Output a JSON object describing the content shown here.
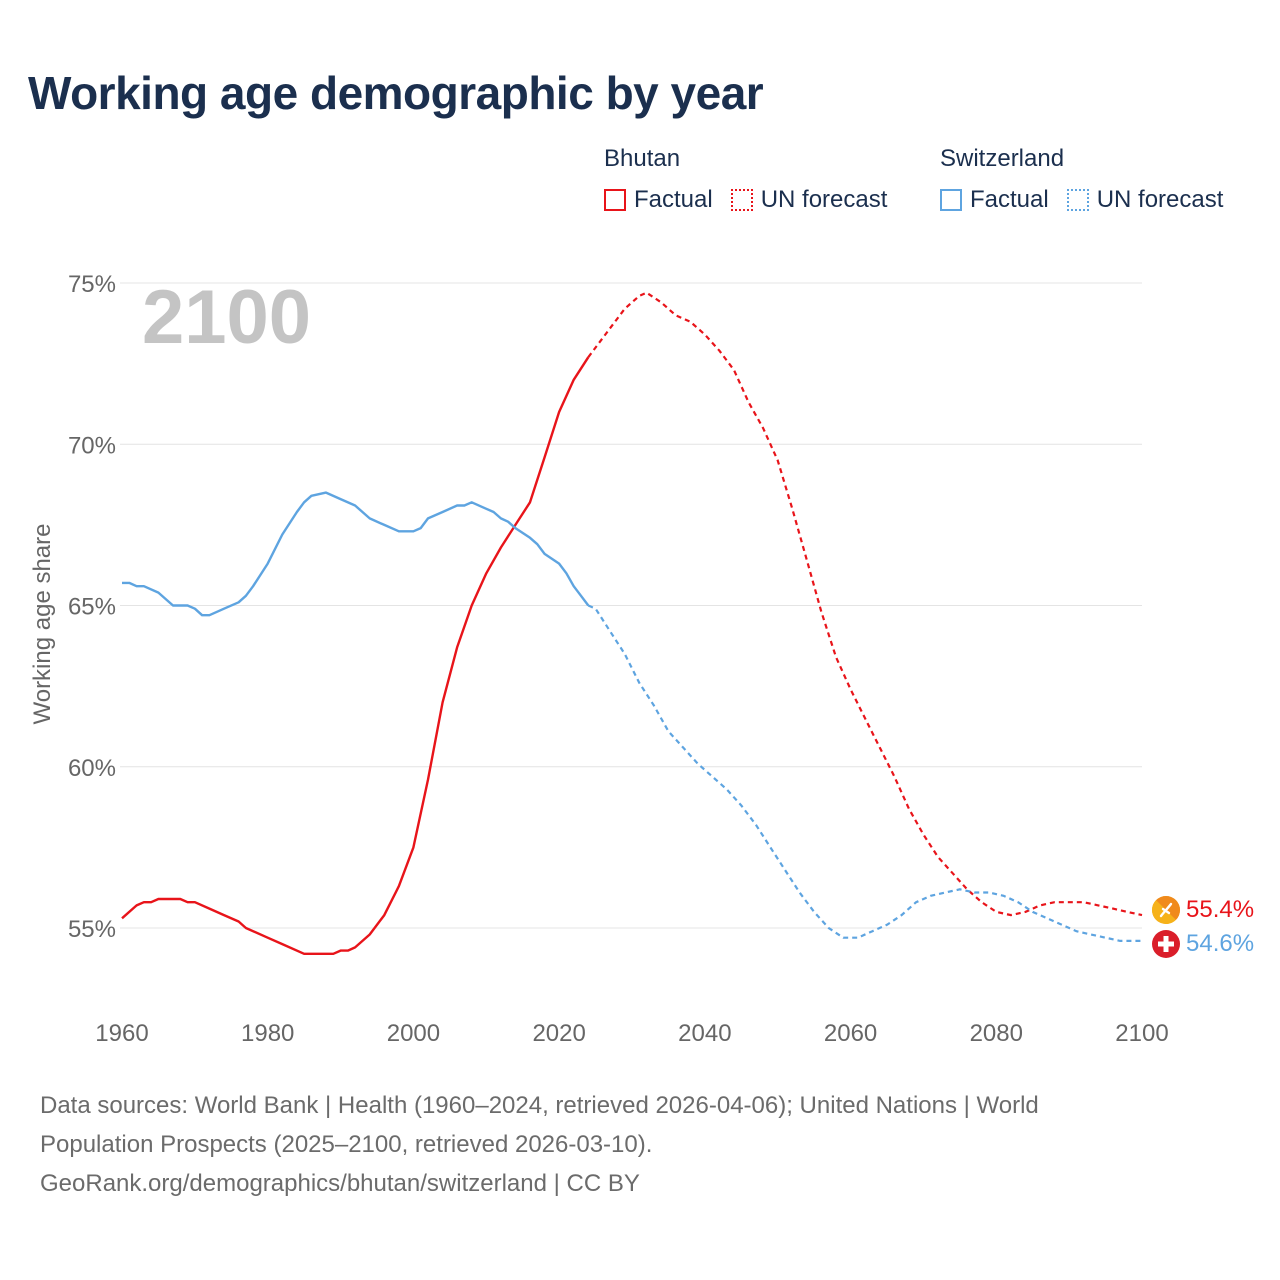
{
  "title": "Working age demographic by year",
  "legend": {
    "groups": [
      {
        "name": "Bhutan",
        "factual": "Factual",
        "forecast": "UN forecast",
        "color": "#e8141a"
      },
      {
        "name": "Switzerland",
        "factual": "Factual",
        "forecast": "UN forecast",
        "color": "#5ea4e0"
      }
    ]
  },
  "year_watermark": "2100",
  "footer": {
    "line1": "Data sources: World Bank | Health (1960–2024, retrieved 2026-04-06); United Nations | World",
    "line2": "Population Prospects (2025–2100, retrieved 2026-03-10).",
    "line3": "GeoRank.org/demographics/bhutan/switzerland | CC BY"
  },
  "chart_data": {
    "type": "line",
    "title": "Working age demographic by year",
    "xlabel": "",
    "ylabel": "Working age share",
    "xlim": [
      1960,
      2100
    ],
    "ylim": [
      53,
      75
    ],
    "x_ticks": [
      1960,
      1980,
      2000,
      2020,
      2040,
      2060,
      2080,
      2100
    ],
    "x_tick_labels": [
      "1960",
      "1980",
      "2000",
      "2020",
      "2040",
      "2060",
      "2080",
      "2100"
    ],
    "y_ticks": [
      55,
      60,
      65,
      70,
      75
    ],
    "y_tick_labels": [
      "55%",
      "60%",
      "65%",
      "70%",
      "75%"
    ],
    "grid": true,
    "forecast_start": 2024,
    "series": [
      {
        "name": "Bhutan",
        "color": "#e8141a",
        "end_label": "55.4%",
        "points": [
          [
            1960,
            55.3
          ],
          [
            1962,
            55.7
          ],
          [
            1963,
            55.8
          ],
          [
            1964,
            55.8
          ],
          [
            1965,
            55.9
          ],
          [
            1968,
            55.9
          ],
          [
            1969,
            55.8
          ],
          [
            1970,
            55.8
          ],
          [
            1972,
            55.6
          ],
          [
            1974,
            55.4
          ],
          [
            1976,
            55.2
          ],
          [
            1977,
            55.0
          ],
          [
            1980,
            54.7
          ],
          [
            1982,
            54.5
          ],
          [
            1985,
            54.2
          ],
          [
            1988,
            54.2
          ],
          [
            1989,
            54.2
          ],
          [
            1990,
            54.3
          ],
          [
            1991,
            54.3
          ],
          [
            1992,
            54.4
          ],
          [
            1994,
            54.8
          ],
          [
            1996,
            55.4
          ],
          [
            1998,
            56.3
          ],
          [
            2000,
            57.5
          ],
          [
            2002,
            59.6
          ],
          [
            2004,
            62.0
          ],
          [
            2006,
            63.7
          ],
          [
            2008,
            65.0
          ],
          [
            2010,
            66.0
          ],
          [
            2012,
            66.8
          ],
          [
            2014,
            67.5
          ],
          [
            2016,
            68.2
          ],
          [
            2018,
            69.6
          ],
          [
            2020,
            71.0
          ],
          [
            2022,
            72.0
          ],
          [
            2024,
            72.7
          ],
          [
            2025,
            73.0
          ],
          [
            2027,
            73.6
          ],
          [
            2029,
            74.2
          ],
          [
            2031,
            74.6
          ],
          [
            2032,
            74.7
          ],
          [
            2034,
            74.4
          ],
          [
            2036,
            74.0
          ],
          [
            2038,
            73.8
          ],
          [
            2040,
            73.4
          ],
          [
            2042,
            72.9
          ],
          [
            2044,
            72.3
          ],
          [
            2046,
            71.3
          ],
          [
            2048,
            70.5
          ],
          [
            2050,
            69.5
          ],
          [
            2052,
            68.0
          ],
          [
            2054,
            66.4
          ],
          [
            2056,
            64.8
          ],
          [
            2058,
            63.4
          ],
          [
            2060,
            62.4
          ],
          [
            2062,
            61.5
          ],
          [
            2064,
            60.6
          ],
          [
            2066,
            59.7
          ],
          [
            2068,
            58.7
          ],
          [
            2070,
            57.9
          ],
          [
            2072,
            57.2
          ],
          [
            2074,
            56.7
          ],
          [
            2076,
            56.2
          ],
          [
            2078,
            55.8
          ],
          [
            2080,
            55.5
          ],
          [
            2082,
            55.4
          ],
          [
            2084,
            55.5
          ],
          [
            2086,
            55.7
          ],
          [
            2088,
            55.8
          ],
          [
            2090,
            55.8
          ],
          [
            2092,
            55.8
          ],
          [
            2094,
            55.7
          ],
          [
            2096,
            55.6
          ],
          [
            2098,
            55.5
          ],
          [
            2100,
            55.4
          ]
        ]
      },
      {
        "name": "Switzerland",
        "color": "#5ea4e0",
        "end_label": "54.6%",
        "points": [
          [
            1960,
            65.7
          ],
          [
            1961,
            65.7
          ],
          [
            1962,
            65.6
          ],
          [
            1963,
            65.6
          ],
          [
            1965,
            65.4
          ],
          [
            1967,
            65.0
          ],
          [
            1969,
            65.0
          ],
          [
            1970,
            64.9
          ],
          [
            1971,
            64.7
          ],
          [
            1972,
            64.7
          ],
          [
            1974,
            64.9
          ],
          [
            1976,
            65.1
          ],
          [
            1977,
            65.3
          ],
          [
            1978,
            65.6
          ],
          [
            1980,
            66.3
          ],
          [
            1982,
            67.2
          ],
          [
            1984,
            67.9
          ],
          [
            1985,
            68.2
          ],
          [
            1986,
            68.4
          ],
          [
            1988,
            68.5
          ],
          [
            1990,
            68.3
          ],
          [
            1992,
            68.1
          ],
          [
            1994,
            67.7
          ],
          [
            1996,
            67.5
          ],
          [
            1998,
            67.3
          ],
          [
            2000,
            67.3
          ],
          [
            2001,
            67.4
          ],
          [
            2002,
            67.7
          ],
          [
            2004,
            67.9
          ],
          [
            2006,
            68.1
          ],
          [
            2007,
            68.1
          ],
          [
            2008,
            68.2
          ],
          [
            2010,
            68.0
          ],
          [
            2011,
            67.9
          ],
          [
            2012,
            67.7
          ],
          [
            2013,
            67.6
          ],
          [
            2014,
            67.4
          ],
          [
            2016,
            67.1
          ],
          [
            2017,
            66.9
          ],
          [
            2018,
            66.6
          ],
          [
            2020,
            66.3
          ],
          [
            2021,
            66.0
          ],
          [
            2022,
            65.6
          ],
          [
            2023,
            65.3
          ],
          [
            2024,
            65.0
          ],
          [
            2025,
            64.9
          ],
          [
            2027,
            64.2
          ],
          [
            2029,
            63.5
          ],
          [
            2031,
            62.6
          ],
          [
            2033,
            61.9
          ],
          [
            2035,
            61.1
          ],
          [
            2037,
            60.6
          ],
          [
            2039,
            60.1
          ],
          [
            2041,
            59.7
          ],
          [
            2043,
            59.3
          ],
          [
            2045,
            58.8
          ],
          [
            2047,
            58.2
          ],
          [
            2049,
            57.5
          ],
          [
            2051,
            56.8
          ],
          [
            2053,
            56.1
          ],
          [
            2055,
            55.5
          ],
          [
            2057,
            55.0
          ],
          [
            2059,
            54.7
          ],
          [
            2061,
            54.7
          ],
          [
            2063,
            54.9
          ],
          [
            2065,
            55.1
          ],
          [
            2067,
            55.4
          ],
          [
            2069,
            55.8
          ],
          [
            2071,
            56.0
          ],
          [
            2073,
            56.1
          ],
          [
            2075,
            56.2
          ],
          [
            2077,
            56.1
          ],
          [
            2079,
            56.1
          ],
          [
            2081,
            56.0
          ],
          [
            2083,
            55.8
          ],
          [
            2085,
            55.5
          ],
          [
            2087,
            55.3
          ],
          [
            2089,
            55.1
          ],
          [
            2091,
            54.9
          ],
          [
            2093,
            54.8
          ],
          [
            2095,
            54.7
          ],
          [
            2097,
            54.6
          ],
          [
            2100,
            54.6
          ]
        ]
      }
    ]
  }
}
